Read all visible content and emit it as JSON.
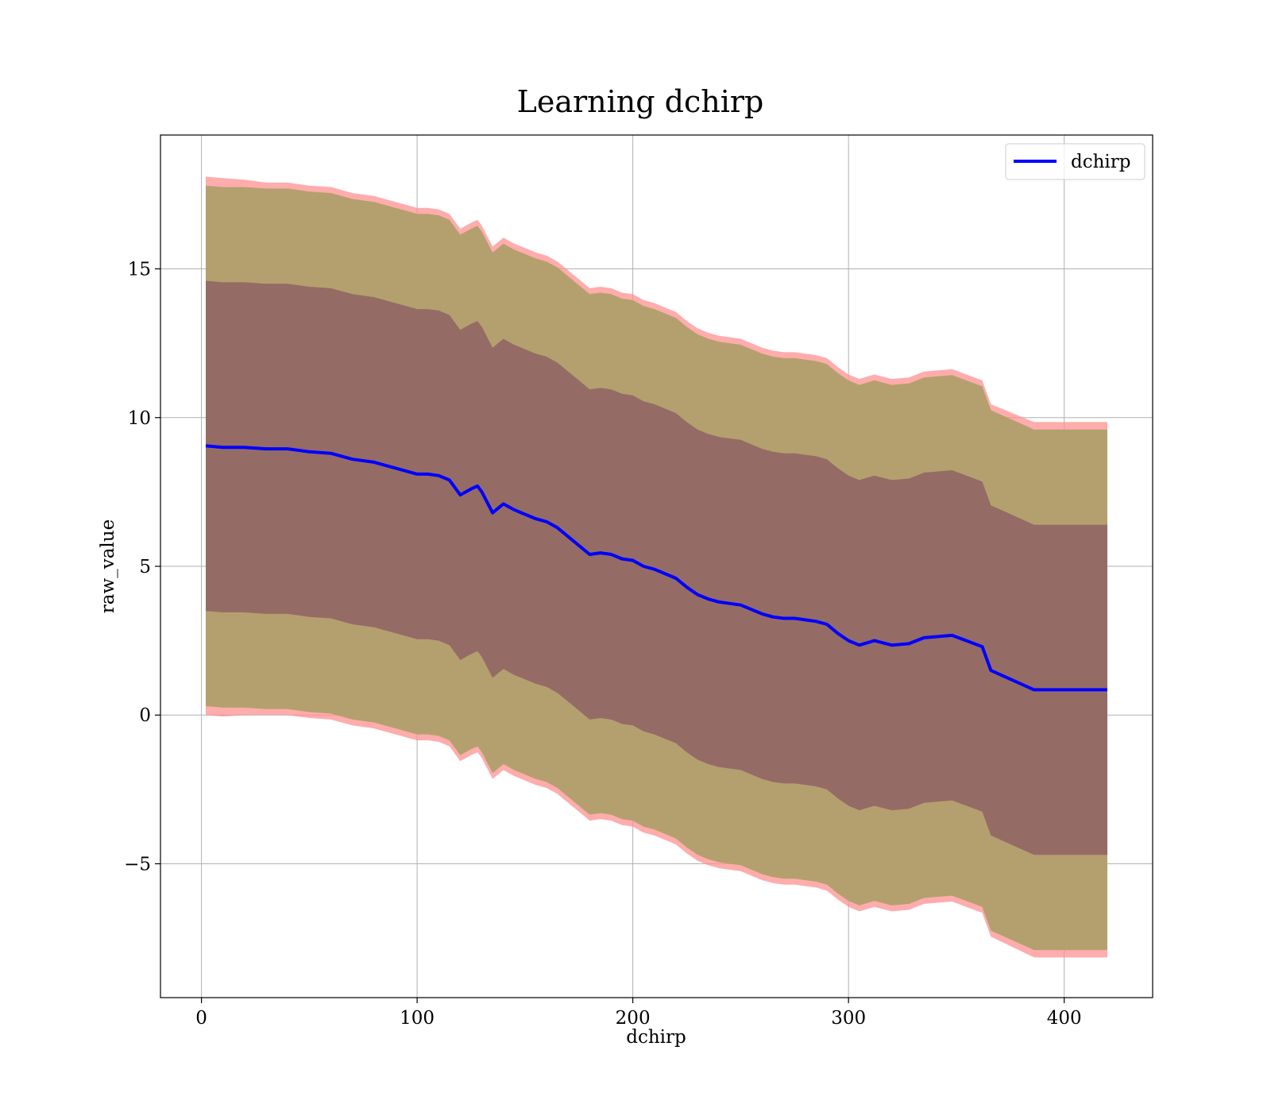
{
  "chart_data": {
    "type": "area",
    "title": "Learning dchirp",
    "xlabel": "dchirp",
    "ylabel": "raw_value",
    "xlim": [
      -19,
      441
    ],
    "ylim": [
      -9.5,
      19.5
    ],
    "x_ticks": [
      0,
      100,
      200,
      300,
      400
    ],
    "x_tick_labels": [
      "0",
      "100",
      "200",
      "300",
      "400"
    ],
    "y_ticks": [
      -5,
      0,
      5,
      10,
      15
    ],
    "y_tick_labels": [
      "−5",
      "0",
      "5",
      "10",
      "15"
    ],
    "grid": true,
    "legend": {
      "position": "top-right",
      "entries": [
        "dchirp"
      ]
    },
    "colors": {
      "line": "#0000ff",
      "outer_band": "#ff9090",
      "middle_band": "#b4a06e",
      "inner_band": "#7b3f60",
      "grid": "#b0b0b0"
    },
    "x": [
      2,
      10,
      20,
      30,
      40,
      50,
      60,
      70,
      80,
      90,
      100,
      105,
      110,
      115,
      120,
      125,
      128,
      130,
      135,
      140,
      145,
      150,
      155,
      160,
      165,
      170,
      175,
      180,
      185,
      190,
      195,
      200,
      205,
      210,
      215,
      220,
      225,
      230,
      235,
      240,
      245,
      250,
      255,
      260,
      265,
      270,
      275,
      280,
      285,
      290,
      295,
      300,
      305,
      312,
      320,
      328,
      335,
      348,
      362,
      366,
      386,
      420
    ],
    "series": [
      {
        "name": "dchirp",
        "values": [
          9.05,
          9.0,
          9.0,
          8.95,
          8.95,
          8.85,
          8.8,
          8.6,
          8.5,
          8.3,
          8.1,
          8.1,
          8.05,
          7.9,
          7.4,
          7.6,
          7.7,
          7.5,
          6.8,
          7.1,
          6.9,
          6.75,
          6.6,
          6.5,
          6.3,
          6.0,
          5.7,
          5.4,
          5.45,
          5.4,
          5.25,
          5.2,
          5.0,
          4.9,
          4.75,
          4.6,
          4.3,
          4.05,
          3.9,
          3.8,
          3.75,
          3.7,
          3.55,
          3.4,
          3.3,
          3.25,
          3.25,
          3.2,
          3.15,
          3.05,
          2.75,
          2.5,
          2.35,
          2.5,
          2.35,
          2.4,
          2.6,
          2.68,
          2.3,
          1.5,
          0.85,
          0.85
        ]
      }
    ],
    "bands": [
      {
        "name": "outer",
        "half_width": [
          9.05,
          9.05,
          9.0,
          8.95,
          8.95,
          8.95,
          8.95,
          8.95,
          8.95,
          8.95,
          8.95,
          8.95,
          8.95,
          8.95,
          8.95,
          8.95,
          8.95,
          8.95,
          8.95,
          8.95,
          8.95,
          8.95,
          8.95,
          8.95,
          8.95,
          8.95,
          8.95,
          8.95,
          8.95,
          8.95,
          8.95,
          8.95,
          8.95,
          8.95,
          8.95,
          8.95,
          8.95,
          8.95,
          8.95,
          8.95,
          8.95,
          8.95,
          8.95,
          8.95,
          8.95,
          8.95,
          8.95,
          8.95,
          8.95,
          8.95,
          8.95,
          8.95,
          8.95,
          8.95,
          8.95,
          8.95,
          8.95,
          8.95,
          8.95,
          8.95,
          9.0,
          9.0
        ]
      },
      {
        "name": "middle",
        "half_width": [
          8.75,
          8.75,
          8.75,
          8.75,
          8.75,
          8.75,
          8.75,
          8.75,
          8.75,
          8.75,
          8.75,
          8.75,
          8.75,
          8.75,
          8.75,
          8.75,
          8.75,
          8.75,
          8.75,
          8.75,
          8.75,
          8.75,
          8.75,
          8.75,
          8.75,
          8.75,
          8.75,
          8.75,
          8.75,
          8.75,
          8.75,
          8.75,
          8.75,
          8.75,
          8.75,
          8.75,
          8.75,
          8.75,
          8.75,
          8.75,
          8.75,
          8.75,
          8.75,
          8.75,
          8.75,
          8.75,
          8.75,
          8.75,
          8.75,
          8.75,
          8.75,
          8.75,
          8.75,
          8.75,
          8.75,
          8.75,
          8.75,
          8.75,
          8.75,
          8.75,
          8.75,
          8.75
        ]
      },
      {
        "name": "inner",
        "half_width": [
          5.55,
          5.55,
          5.55,
          5.55,
          5.55,
          5.55,
          5.55,
          5.55,
          5.55,
          5.55,
          5.55,
          5.55,
          5.55,
          5.55,
          5.55,
          5.55,
          5.55,
          5.55,
          5.55,
          5.55,
          5.55,
          5.55,
          5.55,
          5.55,
          5.55,
          5.55,
          5.55,
          5.55,
          5.55,
          5.55,
          5.55,
          5.55,
          5.55,
          5.55,
          5.55,
          5.55,
          5.55,
          5.55,
          5.55,
          5.55,
          5.55,
          5.55,
          5.55,
          5.55,
          5.55,
          5.55,
          5.55,
          5.55,
          5.55,
          5.55,
          5.55,
          5.55,
          5.55,
          5.55,
          5.55,
          5.55,
          5.55,
          5.55,
          5.55,
          5.55,
          5.55,
          5.55
        ]
      }
    ]
  }
}
